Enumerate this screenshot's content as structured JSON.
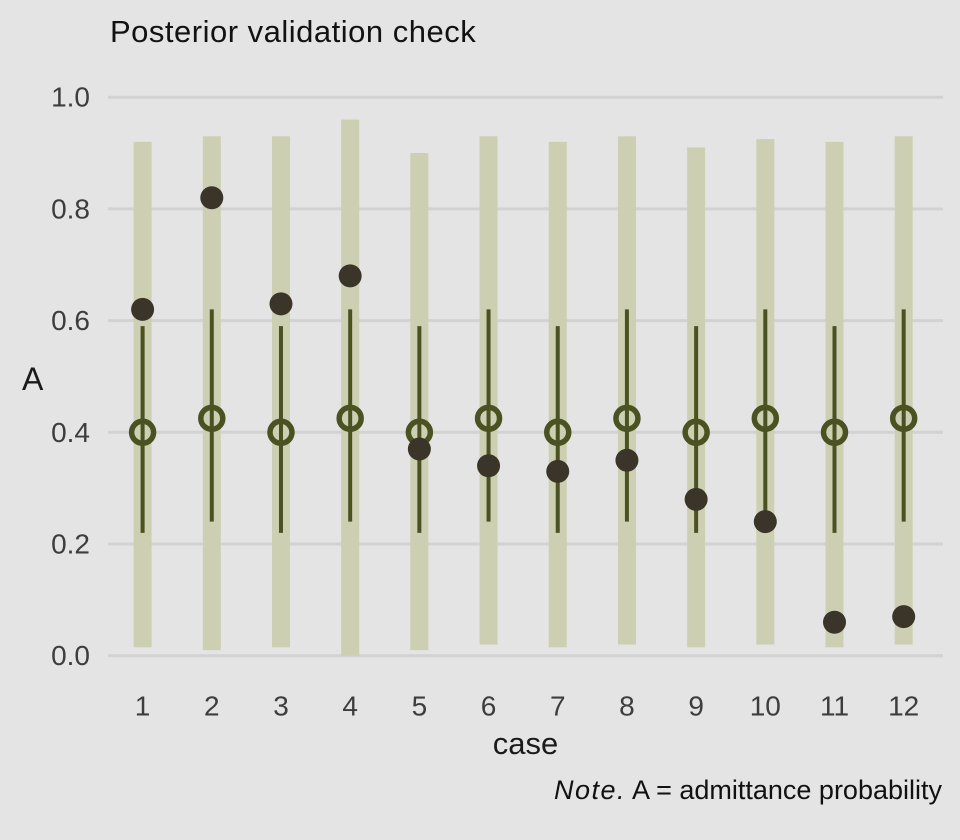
{
  "figure": {
    "title": "Posterior validation check",
    "y_axis_title": "A",
    "x_axis_title": "case",
    "note_italic": "Note.",
    "note_rest": " A = admittance probability"
  },
  "chart_data": {
    "type": "scatter",
    "subtype": "posterior-predictive-intervals-with-observed-points",
    "title": "Posterior validation check",
    "xlabel": "case",
    "ylabel": "A",
    "note": "Note. A = admittance probability",
    "ylim": [
      0.0,
      1.0
    ],
    "yticks": [
      "0.0",
      "0.2",
      "0.4",
      "0.6",
      "0.8",
      "1.0"
    ],
    "ytick_values": [
      0.0,
      0.2,
      0.4,
      0.6,
      0.8,
      1.0
    ],
    "grid": "horizontal-on",
    "legend": "none",
    "categories": [
      "1",
      "2",
      "3",
      "4",
      "5",
      "6",
      "7",
      "8",
      "9",
      "10",
      "11",
      "12"
    ],
    "series": [
      {
        "name": "observed-value",
        "marker": "filled-dot",
        "values": [
          0.62,
          0.82,
          0.63,
          0.68,
          0.37,
          0.34,
          0.33,
          0.35,
          0.28,
          0.24,
          0.06,
          0.07
        ]
      },
      {
        "name": "posterior-median",
        "marker": "open-circle",
        "values": [
          0.4,
          0.425,
          0.4,
          0.425,
          0.4,
          0.425,
          0.4,
          0.425,
          0.4,
          0.425,
          0.4,
          0.425
        ]
      },
      {
        "name": "inner-interval",
        "marker": "thin-line",
        "lo": [
          0.22,
          0.24,
          0.22,
          0.24,
          0.22,
          0.24,
          0.22,
          0.24,
          0.22,
          0.24,
          0.22,
          0.24
        ],
        "hi": [
          0.59,
          0.62,
          0.59,
          0.62,
          0.59,
          0.62,
          0.59,
          0.62,
          0.59,
          0.62,
          0.59,
          0.62
        ]
      },
      {
        "name": "outer-interval",
        "marker": "wide-bar",
        "lo": [
          0.015,
          0.01,
          0.015,
          0.0,
          0.01,
          0.02,
          0.015,
          0.02,
          0.015,
          0.02,
          0.015,
          0.02
        ],
        "hi": [
          0.92,
          0.93,
          0.93,
          0.96,
          0.9,
          0.93,
          0.92,
          0.93,
          0.91,
          0.925,
          0.92,
          0.93
        ]
      }
    ],
    "colors": {
      "background": "#e4e4e4",
      "gridline": "#d2d2d2",
      "outer_bar": "#cccfb1",
      "inner_line": "#4a5222",
      "median_ring": "#4a5222",
      "observed_dot": "#3a3429",
      "tick_label": "#3d3d3d",
      "text": "#121212"
    }
  }
}
